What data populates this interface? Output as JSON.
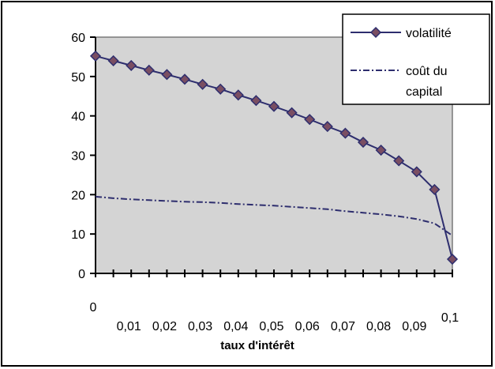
{
  "chart_data": {
    "type": "line",
    "xlabel": "taux d'intérêt",
    "ylabel": "",
    "x": [
      0,
      0.005,
      0.01,
      0.015,
      0.02,
      0.025,
      0.03,
      0.035,
      0.04,
      0.045,
      0.05,
      0.055,
      0.06,
      0.065,
      0.07,
      0.075,
      0.08,
      0.085,
      0.09,
      0.095,
      0.1
    ],
    "x_tick_labels": [
      "0",
      "0,01",
      "0,02",
      "0,03",
      "0,04",
      "0,05",
      "0,06",
      "0,07",
      "0,08",
      "0,09",
      "0,1"
    ],
    "x_tick_values": [
      0,
      0.01,
      0.02,
      0.03,
      0.04,
      0.05,
      0.06,
      0.07,
      0.08,
      0.09,
      0.1
    ],
    "xlim": [
      0,
      0.1
    ],
    "ylim": [
      0,
      60
    ],
    "y_ticks": [
      0,
      10,
      20,
      30,
      40,
      50,
      60
    ],
    "grid": false,
    "legend_position": "top-right",
    "series": [
      {
        "name": "volatilité",
        "color": "#2e2e6e",
        "marker": "diamond",
        "marker_color": "#7a4e62",
        "line_style": "solid",
        "values": [
          55.2,
          54.0,
          52.8,
          51.6,
          50.5,
          49.3,
          48.0,
          46.8,
          45.3,
          43.9,
          42.4,
          40.8,
          39.1,
          37.3,
          35.6,
          33.3,
          31.3,
          28.6,
          25.8,
          21.3,
          3.6
        ]
      },
      {
        "name": "coût du capital",
        "color": "#2e2e6e",
        "marker": "none",
        "line_style": "dash-dot",
        "values": [
          19.5,
          19.1,
          18.8,
          18.6,
          18.4,
          18.2,
          18.1,
          17.9,
          17.6,
          17.4,
          17.2,
          16.9,
          16.6,
          16.3,
          15.8,
          15.4,
          15.0,
          14.5,
          13.8,
          12.7,
          9.6
        ]
      }
    ]
  }
}
